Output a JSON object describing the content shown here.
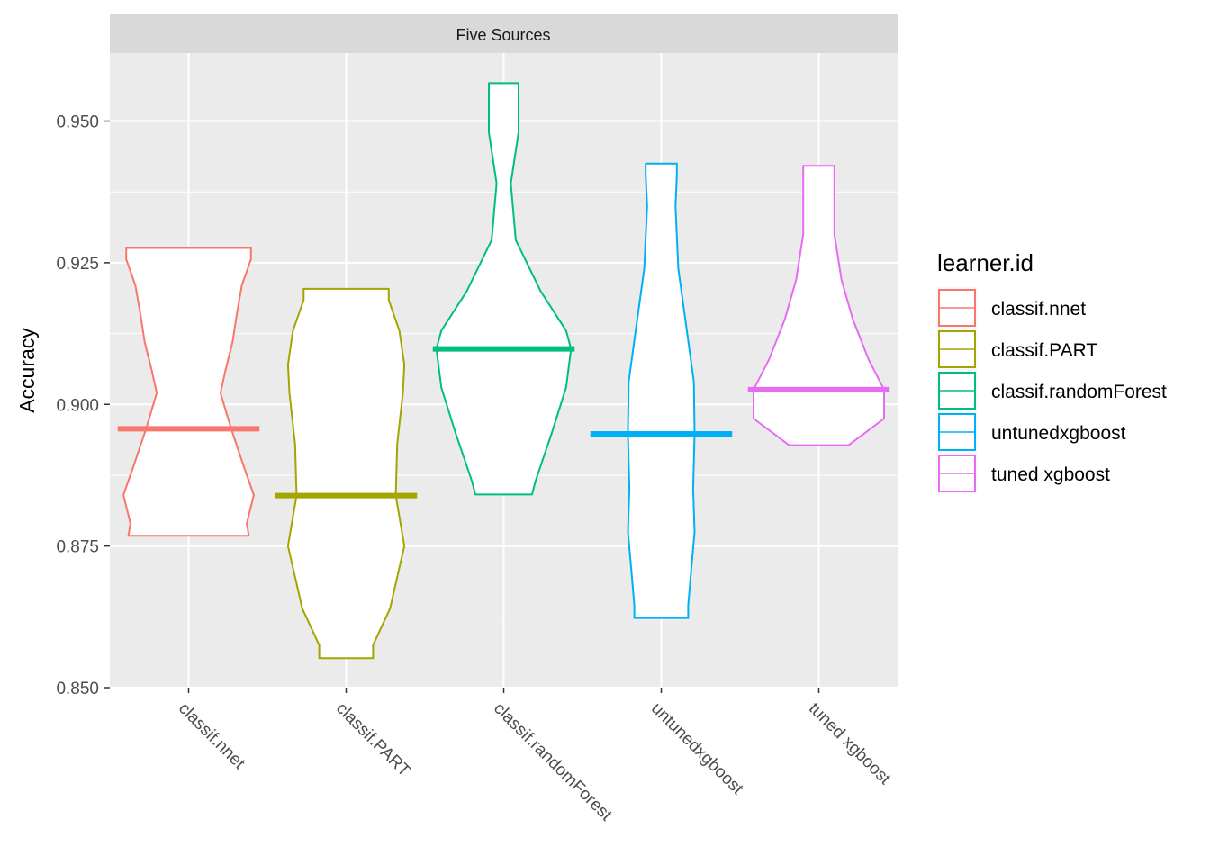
{
  "chart_data": {
    "type": "violin",
    "facet_title": "Five Sources",
    "ylabel": "Accuracy",
    "xlabel": "",
    "ylim": [
      0.85,
      0.962
    ],
    "y_ticks": [
      0.85,
      0.875,
      0.9,
      0.925,
      0.95
    ],
    "y_tick_labels": [
      "0.850",
      "0.875",
      "0.900",
      "0.925",
      "0.950"
    ],
    "categories": [
      "classif.nnet",
      "classif.PART",
      "classif.randomForest",
      "untunedxgboost",
      "tuned xgboost"
    ],
    "grid": true,
    "legend_position": "right",
    "legend_title": "learner.id",
    "series": [
      {
        "name": "classif.nnet",
        "color": "#F8766D",
        "median": 0.8957,
        "min": 0.8768,
        "max": 0.9276,
        "profile": [
          [
            0.8768,
            0.85
          ],
          [
            0.879,
            0.82
          ],
          [
            0.884,
            0.92
          ],
          [
            0.889,
            0.78
          ],
          [
            0.8957,
            0.6
          ],
          [
            0.902,
            0.45
          ],
          [
            0.906,
            0.52
          ],
          [
            0.911,
            0.62
          ],
          [
            0.916,
            0.68
          ],
          [
            0.921,
            0.75
          ],
          [
            0.9256,
            0.88
          ],
          [
            0.9276,
            0.88
          ]
        ]
      },
      {
        "name": "classif.PART",
        "color": "#A3A500",
        "median": 0.8839,
        "min": 0.8552,
        "max": 0.9204,
        "profile": [
          [
            0.8552,
            0.38
          ],
          [
            0.8575,
            0.38
          ],
          [
            0.864,
            0.62
          ],
          [
            0.875,
            0.82
          ],
          [
            0.8839,
            0.7
          ],
          [
            0.893,
            0.72
          ],
          [
            0.902,
            0.8
          ],
          [
            0.907,
            0.82
          ],
          [
            0.913,
            0.75
          ],
          [
            0.9184,
            0.6
          ],
          [
            0.9204,
            0.6
          ]
        ]
      },
      {
        "name": "classif.randomForest",
        "color": "#00BF7D",
        "median": 0.9098,
        "min": 0.8841,
        "max": 0.9567,
        "profile": [
          [
            0.8841,
            0.4
          ],
          [
            0.8865,
            0.45
          ],
          [
            0.895,
            0.68
          ],
          [
            0.903,
            0.88
          ],
          [
            0.9098,
            0.95
          ],
          [
            0.913,
            0.88
          ],
          [
            0.92,
            0.52
          ],
          [
            0.929,
            0.17
          ],
          [
            0.939,
            0.1
          ],
          [
            0.948,
            0.21
          ],
          [
            0.9547,
            0.21
          ],
          [
            0.9567,
            0.21
          ]
        ]
      },
      {
        "name": "untunedxgboost",
        "color": "#00B0F6",
        "median": 0.8948,
        "min": 0.8623,
        "max": 0.9425,
        "profile": [
          [
            0.8623,
            0.38
          ],
          [
            0.8645,
            0.38
          ],
          [
            0.8705,
            0.42
          ],
          [
            0.8775,
            0.47
          ],
          [
            0.885,
            0.45
          ],
          [
            0.8948,
            0.47
          ],
          [
            0.904,
            0.46
          ],
          [
            0.913,
            0.36
          ],
          [
            0.924,
            0.24
          ],
          [
            0.935,
            0.2
          ],
          [
            0.9405,
            0.22
          ],
          [
            0.9425,
            0.22
          ]
        ]
      },
      {
        "name": "tuned xgboost",
        "color": "#E76BF3",
        "median": 0.9026,
        "min": 0.8928,
        "max": 0.9421,
        "profile": [
          [
            0.8928,
            0.42
          ],
          [
            0.8945,
            0.6
          ],
          [
            0.8975,
            0.92
          ],
          [
            0.9026,
            0.92
          ],
          [
            0.908,
            0.7
          ],
          [
            0.915,
            0.48
          ],
          [
            0.922,
            0.32
          ],
          [
            0.93,
            0.22
          ],
          [
            0.94,
            0.22
          ],
          [
            0.9421,
            0.22
          ]
        ]
      }
    ]
  }
}
